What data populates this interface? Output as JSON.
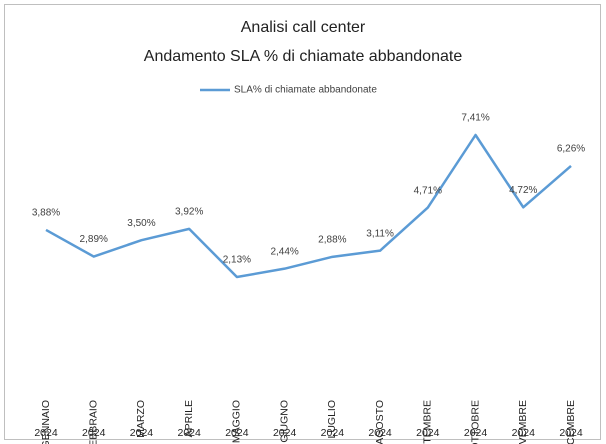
{
  "chart_data": {
    "type": "line",
    "title": "Analisi call center",
    "subtitle": "Andamento SLA % di chiamate abbandonate",
    "categories": [
      "GENNAIO",
      "FEBBRAIO",
      "MARZO",
      "APRILE",
      "MAGGIO",
      "GIUGNO",
      "LUGLIO",
      "AGOSTO",
      "SETTEMBRE",
      "OTTOBRE",
      "NOVEMBRE",
      "DICEMBRE"
    ],
    "category_years": [
      "2024",
      "2024",
      "2024",
      "2024",
      "2024",
      "2024",
      "2024",
      "2024",
      "2024",
      "2024",
      "2024",
      "2024"
    ],
    "series": [
      {
        "name": "SLA% di chiamate abbandonate",
        "color": "#5b9bd5",
        "values": [
          3.88,
          2.89,
          3.5,
          3.92,
          2.13,
          2.44,
          2.88,
          3.11,
          4.71,
          7.41,
          4.72,
          6.26
        ],
        "value_labels": [
          "3,88%",
          "2,89%",
          "3,50%",
          "3,92%",
          "2,13%",
          "2,44%",
          "2,88%",
          "3,11%",
          "4,71%",
          "7,41%",
          "4,72%",
          "6,26%"
        ]
      }
    ],
    "legend": "top"
  }
}
